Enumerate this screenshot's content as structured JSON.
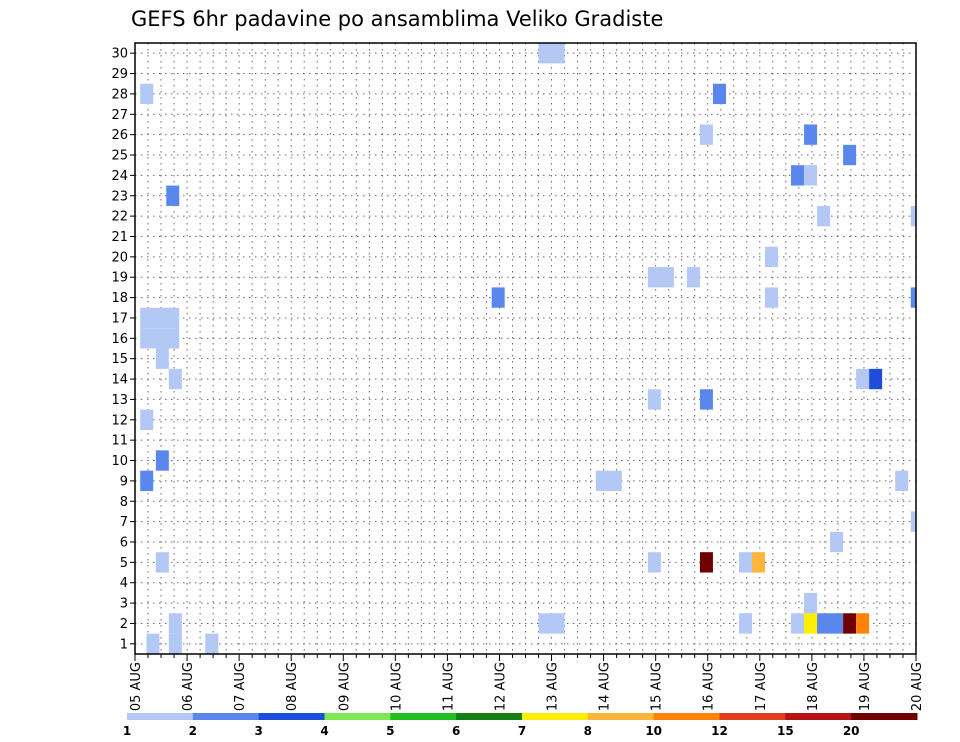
{
  "chart_data": {
    "type": "heatmap",
    "title": "GEFS 6hr padavine po ansamblima Veliko Gradiste",
    "xlabel": "",
    "ylabel": "",
    "x_tick_labels": [
      "05 AUG",
      "06 AUG",
      "07 AUG",
      "08 AUG",
      "09 AUG",
      "10 AUG",
      "11 AUG",
      "12 AUG",
      "13 AUG",
      "14 AUG",
      "15 AUG",
      "16 AUG",
      "17 AUG",
      "18 AUG",
      "19 AUG",
      "20 AUG"
    ],
    "y_tick_labels": [
      "1",
      "2",
      "3",
      "4",
      "5",
      "6",
      "7",
      "8",
      "9",
      "10",
      "11",
      "12",
      "13",
      "14",
      "15",
      "16",
      "17",
      "18",
      "19",
      "20",
      "21",
      "22",
      "23",
      "24",
      "25",
      "26",
      "27",
      "28",
      "29",
      "30"
    ],
    "xlim": [
      0,
      15
    ],
    "ylim": [
      0.5,
      30.5
    ],
    "grid": true,
    "colorbar": {
      "labels": [
        "1",
        "2",
        "3",
        "4",
        "5",
        "6",
        "7",
        "8",
        "10",
        "12",
        "15",
        "20"
      ],
      "colors": [
        "#b4c8f5",
        "#5a87eb",
        "#1e4ddb",
        "#7ee852",
        "#1ebf1e",
        "#137e13",
        "#ffee00",
        "#ffb43c",
        "#ff8205",
        "#e23c1b",
        "#b41414",
        "#6e0000"
      ],
      "placement": "bottom"
    },
    "cells": [
      {
        "x": 0.22,
        "w": 0.25,
        "y": 1,
        "c": 0
      },
      {
        "x": 0.65,
        "w": 0.25,
        "y": 1,
        "c": 0
      },
      {
        "x": 1.35,
        "w": 0.25,
        "y": 1,
        "c": 0
      },
      {
        "x": 0.65,
        "w": 0.25,
        "y": 2,
        "c": 0
      },
      {
        "x": 7.75,
        "w": 0.5,
        "y": 2,
        "c": 0
      },
      {
        "x": 11.6,
        "w": 0.25,
        "y": 2,
        "c": 0
      },
      {
        "x": 12.6,
        "w": 0.25,
        "y": 2,
        "c": 0
      },
      {
        "x": 12.85,
        "w": 0.25,
        "y": 2,
        "c": 6
      },
      {
        "x": 13.1,
        "w": 0.5,
        "y": 2,
        "c": 1
      },
      {
        "x": 13.6,
        "w": 0.25,
        "y": 2,
        "c": 11
      },
      {
        "x": 13.85,
        "w": 0.25,
        "y": 2,
        "c": 8
      },
      {
        "x": 12.85,
        "w": 0.25,
        "y": 3,
        "c": 0
      },
      {
        "x": 0.4,
        "w": 0.25,
        "y": 5,
        "c": 0
      },
      {
        "x": 9.85,
        "w": 0.25,
        "y": 5,
        "c": 0
      },
      {
        "x": 10.85,
        "w": 0.25,
        "y": 5,
        "c": 11
      },
      {
        "x": 11.6,
        "w": 0.25,
        "y": 5,
        "c": 0
      },
      {
        "x": 11.85,
        "w": 0.25,
        "y": 5,
        "c": 7
      },
      {
        "x": 13.35,
        "w": 0.25,
        "y": 6,
        "c": 0
      },
      {
        "x": 14.9,
        "w": 0.1,
        "y": 7,
        "c": 0
      },
      {
        "x": 0.1,
        "w": 0.25,
        "y": 9,
        "c": 1
      },
      {
        "x": 8.85,
        "w": 0.5,
        "y": 9,
        "c": 0
      },
      {
        "x": 14.6,
        "w": 0.25,
        "y": 9,
        "c": 0
      },
      {
        "x": 0.4,
        "w": 0.25,
        "y": 10,
        "c": 1
      },
      {
        "x": 0.1,
        "w": 0.25,
        "y": 12,
        "c": 0
      },
      {
        "x": 9.85,
        "w": 0.25,
        "y": 13,
        "c": 0
      },
      {
        "x": 10.85,
        "w": 0.25,
        "y": 13,
        "c": 1
      },
      {
        "x": 0.65,
        "w": 0.25,
        "y": 14,
        "c": 0
      },
      {
        "x": 13.85,
        "w": 0.25,
        "y": 14,
        "c": 0
      },
      {
        "x": 14.1,
        "w": 0.25,
        "y": 14,
        "c": 2
      },
      {
        "x": 0.4,
        "w": 0.25,
        "y": 15,
        "c": 0
      },
      {
        "x": 0.1,
        "w": 0.75,
        "y": 16,
        "c": 0
      },
      {
        "x": 0.1,
        "w": 0.75,
        "y": 17,
        "c": 0
      },
      {
        "x": 6.85,
        "w": 0.25,
        "y": 18,
        "c": 1
      },
      {
        "x": 12.1,
        "w": 0.25,
        "y": 18,
        "c": 0
      },
      {
        "x": 14.9,
        "w": 0.1,
        "y": 18,
        "c": 1
      },
      {
        "x": 9.85,
        "w": 0.5,
        "y": 19,
        "c": 0
      },
      {
        "x": 10.6,
        "w": 0.25,
        "y": 19,
        "c": 0
      },
      {
        "x": 12.1,
        "w": 0.25,
        "y": 20,
        "c": 0
      },
      {
        "x": 13.1,
        "w": 0.25,
        "y": 22,
        "c": 0
      },
      {
        "x": 14.9,
        "w": 0.1,
        "y": 22,
        "c": 0
      },
      {
        "x": 0.6,
        "w": 0.25,
        "y": 23,
        "c": 1
      },
      {
        "x": 12.6,
        "w": 0.25,
        "y": 24,
        "c": 1
      },
      {
        "x": 12.85,
        "w": 0.25,
        "y": 24,
        "c": 0
      },
      {
        "x": 13.6,
        "w": 0.25,
        "y": 25,
        "c": 1
      },
      {
        "x": 10.85,
        "w": 0.25,
        "y": 26,
        "c": 0
      },
      {
        "x": 12.85,
        "w": 0.25,
        "y": 26,
        "c": 1
      },
      {
        "x": 0.1,
        "w": 0.25,
        "y": 28,
        "c": 0
      },
      {
        "x": 11.1,
        "w": 0.25,
        "y": 28,
        "c": 1
      },
      {
        "x": 7.75,
        "w": 0.5,
        "y": 30,
        "c": 0
      }
    ]
  }
}
